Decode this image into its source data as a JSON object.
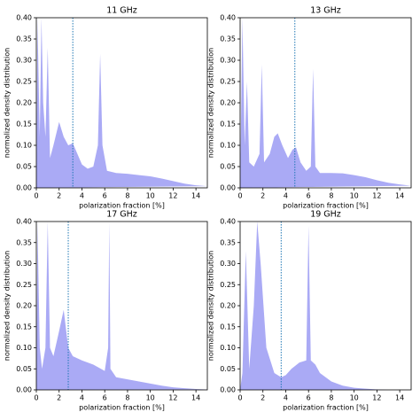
{
  "chart_data": [
    {
      "type": "area",
      "title": "11 GHz",
      "xlabel": "polarization fraction [%]",
      "ylabel": "normalized density distribution",
      "color": "#aaaaf5",
      "vline": 3.2,
      "vline_color": "#1f77b4",
      "x": [
        0,
        0.1,
        0.3,
        0.45,
        0.6,
        0.8,
        1.0,
        1.2,
        1.5,
        2.0,
        2.4,
        2.8,
        3.2,
        3.6,
        4.0,
        4.5,
        5.0,
        5.4,
        5.6,
        5.8,
        6.2,
        7,
        8,
        9,
        10,
        11,
        12,
        13,
        14,
        15
      ],
      "values": [
        0,
        0.4,
        0.12,
        0.4,
        0.2,
        0.12,
        0.33,
        0.07,
        0.1,
        0.155,
        0.12,
        0.1,
        0.105,
        0.08,
        0.055,
        0.045,
        0.05,
        0.1,
        0.315,
        0.1,
        0.04,
        0.035,
        0.033,
        0.03,
        0.027,
        0.022,
        0.016,
        0.01,
        0.006,
        0.004
      ],
      "xlim": [
        0,
        15
      ],
      "ylim": [
        0,
        0.4
      ],
      "xticks": [
        0,
        2,
        4,
        6,
        8,
        10,
        12,
        14
      ],
      "yticks": [
        {
          "value": 0,
          "label": "0.00"
        },
        {
          "value": 0.05,
          "label": "0.05"
        },
        {
          "value": 0.1,
          "label": "0.10"
        },
        {
          "value": 0.15,
          "label": "0.15"
        },
        {
          "value": 0.2,
          "label": "0.20"
        },
        {
          "value": 0.25,
          "label": "0.25"
        },
        {
          "value": 0.3,
          "label": "0.30"
        },
        {
          "value": 0.35,
          "label": "0.35"
        },
        {
          "value": 0.4,
          "label": "0.40"
        }
      ]
    },
    {
      "type": "area",
      "title": "13 GHz",
      "xlabel": "polarization fraction [%]",
      "ylabel": "normalized density distribution",
      "color": "#aaaaf5",
      "vline": 4.8,
      "vline_color": "#1f77b4",
      "x": [
        0,
        0.2,
        0.4,
        0.6,
        0.8,
        1.2,
        1.7,
        1.9,
        2.1,
        2.6,
        3.0,
        3.3,
        3.7,
        4.2,
        4.6,
        4.9,
        5.3,
        5.8,
        6.2,
        6.4,
        6.6,
        7,
        8,
        9,
        10,
        11,
        12,
        13,
        14,
        15
      ],
      "values": [
        0,
        0.4,
        0.1,
        0.25,
        0.06,
        0.05,
        0.08,
        0.29,
        0.06,
        0.08,
        0.12,
        0.128,
        0.1,
        0.07,
        0.09,
        0.095,
        0.06,
        0.04,
        0.05,
        0.28,
        0.05,
        0.035,
        0.035,
        0.034,
        0.03,
        0.025,
        0.018,
        0.012,
        0.008,
        0.005
      ],
      "xlim": [
        0,
        15
      ],
      "ylim": [
        0,
        0.4
      ],
      "xticks": [
        0,
        2,
        4,
        6,
        8,
        10,
        12,
        14
      ],
      "yticks": [
        {
          "value": 0,
          "label": "0.00"
        },
        {
          "value": 0.05,
          "label": "0.05"
        },
        {
          "value": 0.1,
          "label": "0.10"
        },
        {
          "value": 0.15,
          "label": "0.15"
        },
        {
          "value": 0.2,
          "label": "0.20"
        },
        {
          "value": 0.25,
          "label": "0.25"
        },
        {
          "value": 0.3,
          "label": "0.30"
        },
        {
          "value": 0.35,
          "label": "0.35"
        },
        {
          "value": 0.4,
          "label": "0.40"
        }
      ]
    },
    {
      "type": "area",
      "title": "17 GHz",
      "xlabel": "polarization fraction [%]",
      "ylabel": "normalized density distribution",
      "color": "#aaaaf5",
      "vline": 2.8,
      "vline_color": "#1f77b4",
      "x": [
        0,
        0.1,
        0.3,
        0.5,
        0.8,
        1.0,
        1.2,
        1.5,
        2.0,
        2.4,
        2.8,
        3.2,
        4,
        5,
        6,
        6.3,
        6.4,
        6.5,
        7,
        8,
        9,
        10,
        11,
        12,
        13,
        14,
        15
      ],
      "values": [
        0,
        0.4,
        0.1,
        0.05,
        0.1,
        0.4,
        0.1,
        0.08,
        0.14,
        0.19,
        0.1,
        0.08,
        0.07,
        0.06,
        0.045,
        0.1,
        0.4,
        0.05,
        0.03,
        0.025,
        0.02,
        0.015,
        0.01,
        0.006,
        0.004,
        0.002,
        0.001
      ],
      "xlim": [
        0,
        15
      ],
      "ylim": [
        0,
        0.4
      ],
      "xticks": [
        0,
        2,
        4,
        6,
        8,
        10,
        12,
        14
      ],
      "yticks": [
        {
          "value": 0,
          "label": "0.00"
        },
        {
          "value": 0.05,
          "label": "0.05"
        },
        {
          "value": 0.1,
          "label": "0.10"
        },
        {
          "value": 0.15,
          "label": "0.15"
        },
        {
          "value": 0.2,
          "label": "0.20"
        },
        {
          "value": 0.25,
          "label": "0.25"
        },
        {
          "value": 0.3,
          "label": "0.30"
        },
        {
          "value": 0.35,
          "label": "0.35"
        },
        {
          "value": 0.4,
          "label": "0.40"
        }
      ]
    },
    {
      "type": "area",
      "title": "19 GHz",
      "xlabel": "polarization fraction [%]",
      "ylabel": "normalized density distribution",
      "color": "#aaaaf5",
      "vline": 3.6,
      "vline_color": "#1f77b4",
      "x": [
        0,
        0.2,
        0.5,
        0.8,
        1.2,
        1.5,
        1.8,
        2.3,
        3,
        3.6,
        4,
        4.5,
        5.2,
        5.8,
        6.0,
        6.2,
        6.6,
        7,
        8,
        9,
        10,
        11,
        12,
        13,
        14,
        15
      ],
      "values": [
        0,
        0.04,
        0.33,
        0.05,
        0.2,
        0.4,
        0.3,
        0.1,
        0.04,
        0.03,
        0.035,
        0.05,
        0.065,
        0.07,
        0.39,
        0.07,
        0.06,
        0.04,
        0.02,
        0.01,
        0.005,
        0.003,
        0.001,
        0,
        0,
        0
      ],
      "xlim": [
        0,
        15
      ],
      "ylim": [
        0,
        0.4
      ],
      "xticks": [
        0,
        2,
        4,
        6,
        8,
        10,
        12,
        14
      ],
      "yticks": [
        {
          "value": 0,
          "label": "0.00"
        },
        {
          "value": 0.05,
          "label": "0.05"
        },
        {
          "value": 0.1,
          "label": "0.10"
        },
        {
          "value": 0.15,
          "label": "0.15"
        },
        {
          "value": 0.2,
          "label": "0.20"
        },
        {
          "value": 0.25,
          "label": "0.25"
        },
        {
          "value": 0.3,
          "label": "0.30"
        },
        {
          "value": 0.35,
          "label": "0.35"
        },
        {
          "value": 0.4,
          "label": "0.40"
        }
      ]
    }
  ]
}
